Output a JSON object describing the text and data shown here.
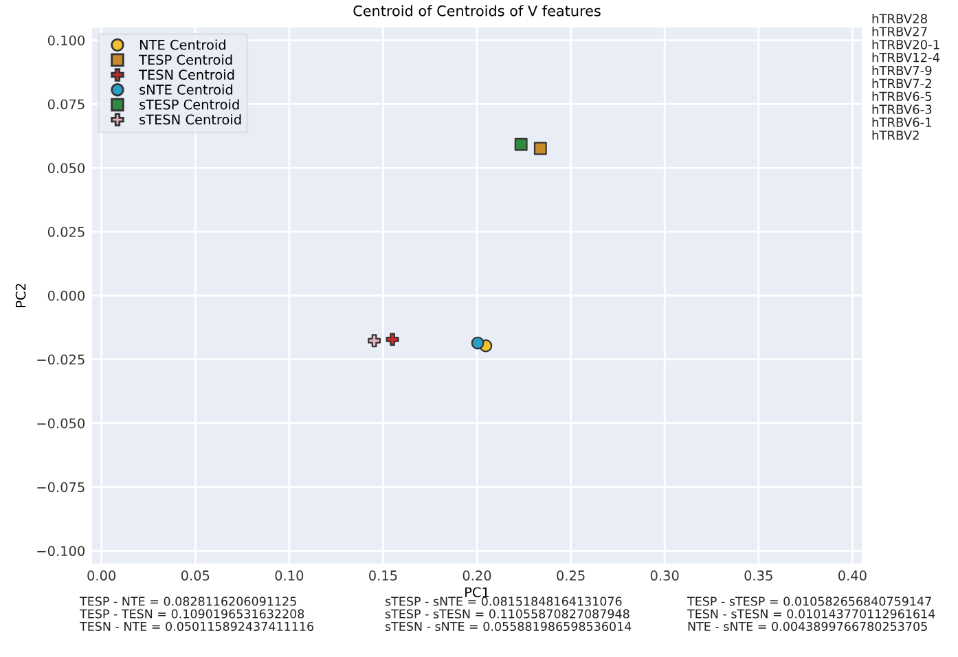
{
  "chart_data": {
    "type": "scatter",
    "title": "Centroid of Centroids of V features",
    "xlabel": "PC1",
    "ylabel": "PC2",
    "series": [
      {
        "name": "NTE Centroid",
        "color": "#f2c12e",
        "marker": "circle",
        "x": [
          0.2047
        ],
        "values": [
          -0.0197
        ]
      },
      {
        "name": "TESP Centroid",
        "color": "#c98a2b",
        "marker": "square",
        "x": [
          0.2338
        ],
        "values": [
          0.0576
        ]
      },
      {
        "name": "TESN Centroid",
        "color": "#d62728",
        "marker": "cross",
        "x": [
          0.155
        ],
        "values": [
          -0.0172
        ]
      },
      {
        "name": "sNTE Centroid",
        "color": "#2a9fc6",
        "marker": "circle",
        "x": [
          0.2004
        ],
        "values": [
          -0.0186
        ]
      },
      {
        "name": "sTESP Centroid",
        "color": "#2e8b3e",
        "marker": "square",
        "x": [
          0.2235
        ],
        "values": [
          0.0592
        ]
      },
      {
        "name": "sTESN Centroid",
        "color": "#e8b4c0",
        "marker": "cross",
        "x": [
          0.1453
        ],
        "values": [
          -0.0177
        ]
      }
    ],
    "xlim": [
      -0.005,
      0.405
    ],
    "xticks": [
      {
        "value": 0,
        "label": "0.00"
      },
      0.05,
      {
        "value": 0.1,
        "label": "0.10"
      },
      0.15,
      {
        "value": 0.2,
        "label": "0.20"
      },
      0.25,
      {
        "value": 0.3,
        "label": "0.30"
      },
      0.35,
      {
        "value": 0.4,
        "label": "0.40"
      }
    ],
    "ylim": [
      -0.105,
      0.105
    ],
    "yticks": [
      {
        "value": -0.1,
        "label": "−0.100"
      },
      {
        "value": -0.075,
        "label": "−0.075"
      },
      {
        "value": -0.05,
        "label": "−0.050"
      },
      {
        "value": -0.025,
        "label": "−0.025"
      },
      {
        "value": 0,
        "label": "0.000"
      },
      {
        "value": 0.025,
        "label": "0.025"
      },
      {
        "value": 0.05,
        "label": "0.050"
      },
      {
        "value": 0.075,
        "label": "0.075"
      },
      {
        "value": 0.1,
        "label": "0.100"
      }
    ],
    "grid": true,
    "legend": "top left",
    "annotations": [
      "hTRBV28\nhTRBV27\nhTRBV20-1\nhTRBV12-4\nhTRBV7-9\nhTRBV7-2\nhTRBV6-5\nhTRBV6-3\nhTRBV6-1\nhTRBV2",
      "TESP - NTE = 0.0828116206091125\nTESP - TESN = 0.1090196531632208\nTESN - NTE = 0.050115892437411116",
      "sTESP - sNTE = 0.08151848164131076\nsTESP - sTESN = 0.11055870827087948\nsTESN - sNTE = 0.055881986598536014",
      "TESP - sTESP = 0.010582656840759147\nTESN - sTESN = 0.010143770112961614\nNTE - sNTE = 0.0043899766780253705"
    ]
  }
}
